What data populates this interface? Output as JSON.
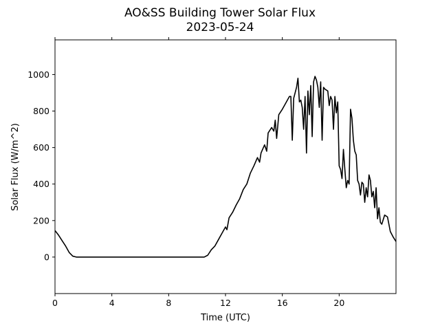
{
  "chart_data": {
    "type": "line",
    "title": "AO&SS Building Tower Solar Flux",
    "subtitle": "2023-05-24",
    "xlabel": "Time (UTC)",
    "ylabel": "Solar Flux (W/m^2)",
    "xlim": [
      0,
      24
    ],
    "ylim": [
      -200,
      1190
    ],
    "xticks": [
      0,
      4,
      8,
      12,
      16,
      20
    ],
    "yticks": [
      0,
      200,
      400,
      600,
      800,
      1000
    ],
    "series": [
      {
        "name": "Solar Flux",
        "color": "#000000",
        "x": [
          0,
          0.25,
          0.5,
          0.75,
          1.0,
          1.25,
          1.5,
          5,
          10.5,
          10.75,
          11,
          11.25,
          11.5,
          11.75,
          12,
          12.1,
          12.25,
          12.5,
          12.75,
          13,
          13.25,
          13.5,
          13.75,
          14,
          14.25,
          14.4,
          14.5,
          14.75,
          14.9,
          15,
          15.25,
          15.4,
          15.5,
          15.6,
          15.75,
          16,
          16.25,
          16.5,
          16.6,
          16.7,
          16.8,
          17,
          17.1,
          17.2,
          17.3,
          17.4,
          17.5,
          17.6,
          17.7,
          17.8,
          17.9,
          18,
          18.1,
          18.2,
          18.3,
          18.4,
          18.5,
          18.6,
          18.7,
          18.8,
          18.9,
          19,
          19.2,
          19.3,
          19.4,
          19.5,
          19.6,
          19.7,
          19.8,
          19.9,
          20,
          20.1,
          20.2,
          20.3,
          20.4,
          20.5,
          20.6,
          20.7,
          20.8,
          20.9,
          21,
          21.1,
          21.2,
          21.3,
          21.4,
          21.5,
          21.6,
          21.7,
          21.8,
          21.9,
          22,
          22.1,
          22.2,
          22.3,
          22.4,
          22.5,
          22.6,
          22.7,
          22.8,
          22.9,
          23,
          23.2,
          23.4,
          23.6,
          23.8,
          24
        ],
        "values": [
          145,
          120,
          90,
          60,
          25,
          5,
          0,
          0,
          0,
          10,
          40,
          60,
          95,
          130,
          165,
          150,
          215,
          245,
          285,
          320,
          370,
          400,
          460,
          500,
          545,
          520,
          570,
          615,
          580,
          680,
          710,
          690,
          750,
          650,
          780,
          810,
          845,
          880,
          880,
          640,
          870,
          930,
          980,
          850,
          860,
          820,
          700,
          880,
          570,
          910,
          780,
          940,
          660,
          960,
          990,
          970,
          930,
          820,
          960,
          640,
          930,
          920,
          910,
          830,
          880,
          860,
          700,
          880,
          790,
          850,
          500,
          480,
          430,
          590,
          480,
          380,
          420,
          400,
          810,
          760,
          640,
          580,
          560,
          420,
          400,
          340,
          410,
          400,
          300,
          380,
          330,
          450,
          420,
          330,
          360,
          270,
          380,
          210,
          270,
          190,
          180,
          230,
          220,
          140,
          110,
          85
        ]
      }
    ]
  }
}
